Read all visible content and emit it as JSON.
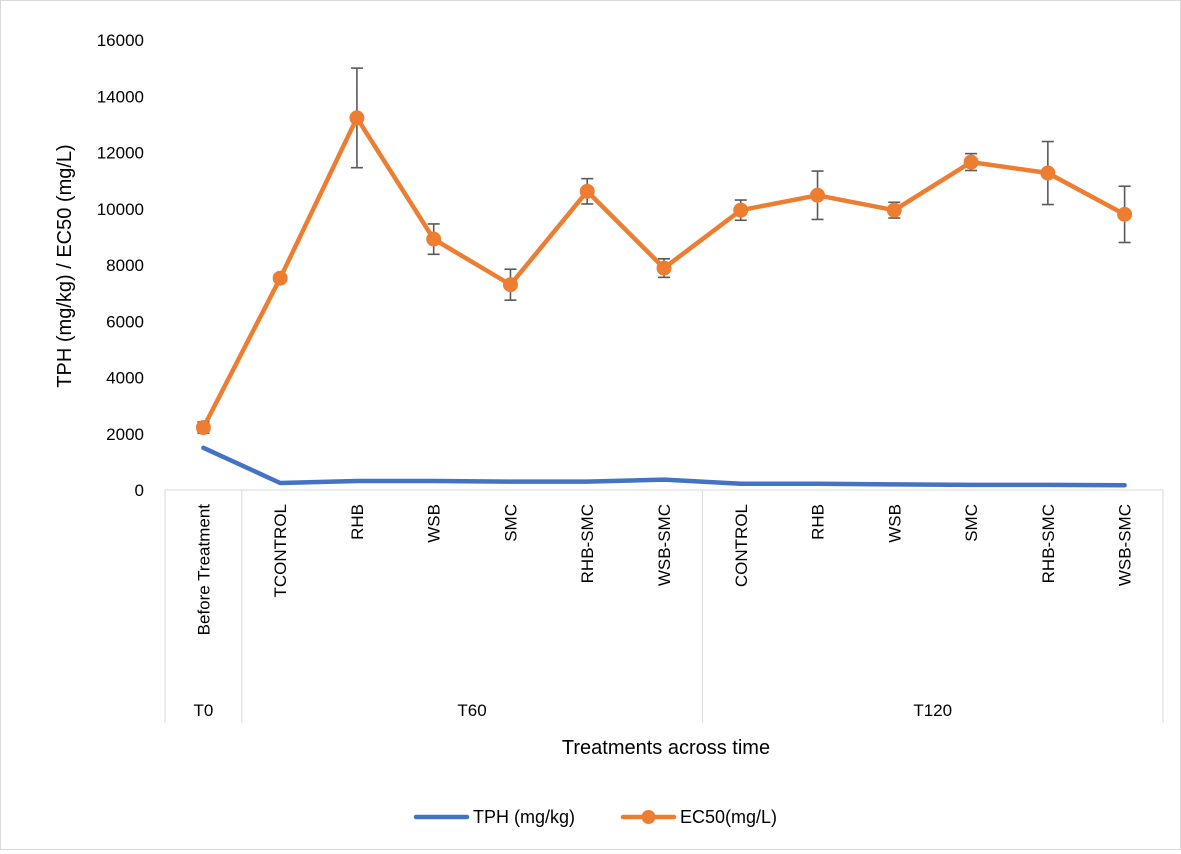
{
  "chart_data": {
    "type": "line",
    "title": "",
    "xlabel": "Treatments across time",
    "ylabel": "TPH (mg/kg) / EC50 (mg/L)",
    "ylim": [
      0,
      16000
    ],
    "yticks": [
      0,
      2000,
      4000,
      6000,
      8000,
      10000,
      12000,
      14000,
      16000
    ],
    "categories": [
      "Before Treatment",
      "TCONTROL",
      "RHB",
      "WSB",
      "SMC",
      "RHB-SMC",
      "WSB-SMC",
      "CONTROL",
      "RHB",
      "WSB",
      "SMC",
      "RHB-SMC",
      "WSB-SMC"
    ],
    "groups": [
      {
        "label": "T0",
        "start": 0,
        "end": 0
      },
      {
        "label": "T60",
        "start": 1,
        "end": 6
      },
      {
        "label": "T120",
        "start": 7,
        "end": 12
      }
    ],
    "series": [
      {
        "name": "TPH (mg/kg)",
        "color": "#4472c4",
        "marker": "none",
        "values": [
          1500,
          250,
          320,
          320,
          300,
          300,
          370,
          220,
          220,
          200,
          180,
          180,
          170
        ]
      },
      {
        "name": "EC50(mg/L)",
        "color": "#ed7d31",
        "marker": "circle",
        "values": [
          2220,
          7530,
          13230,
          8920,
          7300,
          10620,
          7890,
          9950,
          10480,
          9950,
          11660,
          11270,
          9800
        ],
        "error": [
          200,
          0,
          1770,
          540,
          550,
          450,
          330,
          360,
          860,
          280,
          300,
          1120,
          1000
        ]
      }
    ],
    "grid": false,
    "legend": "bottom"
  }
}
